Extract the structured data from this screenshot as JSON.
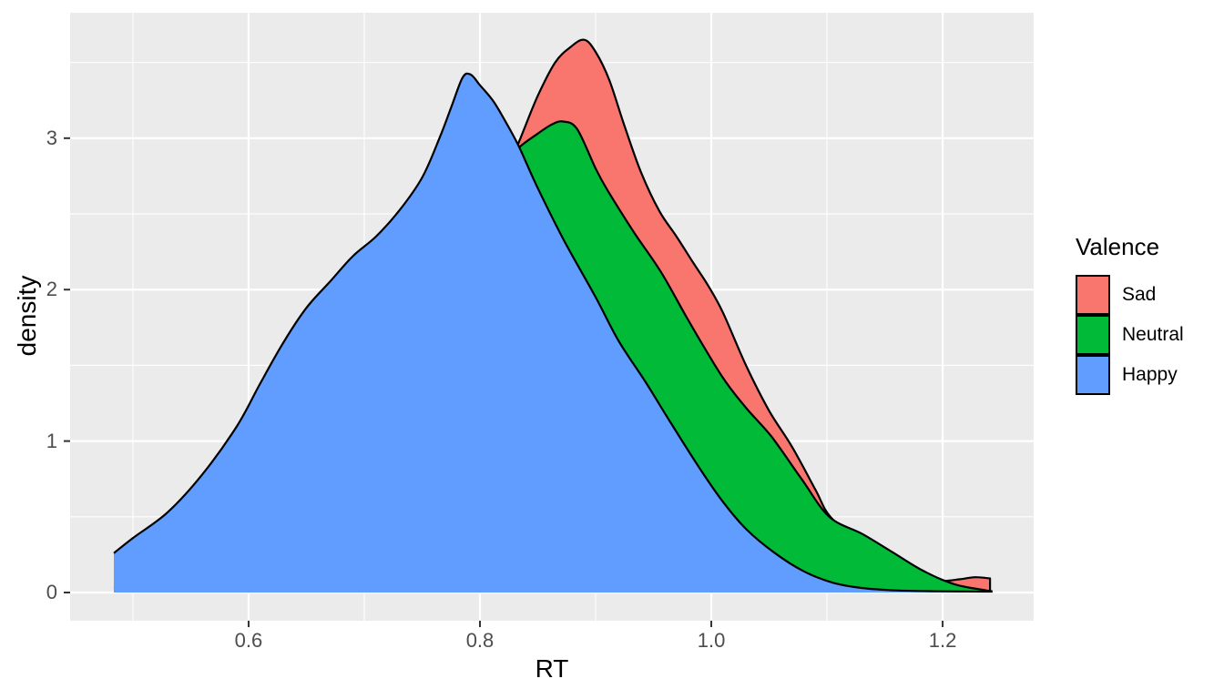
{
  "chart_data": {
    "type": "area",
    "subtype": "density",
    "xlabel": "RT",
    "ylabel": "density",
    "legend_title": "Valence",
    "legend_position": "right",
    "grid": true,
    "panel_bg": "#EBEBEB",
    "grid_color": "#FFFFFF",
    "outline_color": "#000000",
    "tick_color": "#333333",
    "tick_text_color": "#4D4D4D",
    "axes": {
      "x": {
        "domain": [
          0.4457,
          1.2787
        ],
        "major_ticks": [
          0.6,
          0.8,
          1.0,
          1.2
        ],
        "tick_labels": [
          "0.6",
          "0.8",
          "1.0",
          "1.2"
        ],
        "minor_ticks": [
          0.5,
          0.7,
          0.9,
          1.1
        ]
      },
      "y": {
        "domain": [
          -0.1863,
          3.8283
        ],
        "major_ticks": [
          0,
          1,
          2,
          3
        ],
        "tick_labels": [
          "0",
          "1",
          "2",
          "3"
        ],
        "minor_ticks": [
          0.5,
          1.5,
          2.5,
          3.5
        ]
      }
    },
    "series": [
      {
        "name": "Sad",
        "fill": "#F8766D",
        "clip_right_edge": true,
        "points": [
          [
            0.4835,
            0.02
          ],
          [
            0.52,
            0.05
          ],
          [
            0.56,
            0.1
          ],
          [
            0.6,
            0.2
          ],
          [
            0.64,
            0.38
          ],
          [
            0.68,
            0.7
          ],
          [
            0.72,
            1.15
          ],
          [
            0.75,
            1.55
          ],
          [
            0.78,
            2.05
          ],
          [
            0.8,
            2.38
          ],
          [
            0.82,
            2.72
          ],
          [
            0.835,
            3.0
          ],
          [
            0.85,
            3.28
          ],
          [
            0.865,
            3.5
          ],
          [
            0.878,
            3.6
          ],
          [
            0.89,
            3.65
          ],
          [
            0.9,
            3.57
          ],
          [
            0.912,
            3.38
          ],
          [
            0.925,
            3.08
          ],
          [
            0.939,
            2.78
          ],
          [
            0.955,
            2.52
          ],
          [
            0.97,
            2.35
          ],
          [
            0.985,
            2.17
          ],
          [
            0.997,
            2.03
          ],
          [
            1.01,
            1.85
          ],
          [
            1.03,
            1.5
          ],
          [
            1.05,
            1.2
          ],
          [
            1.07,
            0.96
          ],
          [
            1.09,
            0.68
          ],
          [
            1.103,
            0.5
          ],
          [
            1.13,
            0.33
          ],
          [
            1.16,
            0.2
          ],
          [
            1.185,
            0.105
          ],
          [
            1.2,
            0.078
          ],
          [
            1.215,
            0.088
          ],
          [
            1.228,
            0.101
          ],
          [
            1.241,
            0.093
          ]
        ]
      },
      {
        "name": "Neutral",
        "fill": "#00BA38",
        "clip_right_edge": false,
        "points": [
          [
            0.4835,
            0.03
          ],
          [
            0.52,
            0.07
          ],
          [
            0.56,
            0.15
          ],
          [
            0.6,
            0.3
          ],
          [
            0.64,
            0.55
          ],
          [
            0.68,
            0.95
          ],
          [
            0.72,
            1.45
          ],
          [
            0.75,
            1.85
          ],
          [
            0.78,
            2.3
          ],
          [
            0.8,
            2.6
          ],
          [
            0.82,
            2.82
          ],
          [
            0.834,
            2.94
          ],
          [
            0.85,
            3.03
          ],
          [
            0.862,
            3.09
          ],
          [
            0.872,
            3.11
          ],
          [
            0.884,
            3.06
          ],
          [
            0.9,
            2.8
          ],
          [
            0.91,
            2.66
          ],
          [
            0.933,
            2.38
          ],
          [
            0.957,
            2.11
          ],
          [
            0.98,
            1.8
          ],
          [
            1.009,
            1.43
          ],
          [
            1.03,
            1.22
          ],
          [
            1.052,
            1.03
          ],
          [
            1.078,
            0.75
          ],
          [
            1.102,
            0.5
          ],
          [
            1.131,
            0.385
          ],
          [
            1.157,
            0.265
          ],
          [
            1.183,
            0.144
          ],
          [
            1.21,
            0.055
          ],
          [
            1.236,
            0.016
          ],
          [
            1.243,
            0.008
          ]
        ]
      },
      {
        "name": "Happy",
        "fill": "#619CFF",
        "clip_right_edge": false,
        "points": [
          [
            0.4835,
            0.26
          ],
          [
            0.5,
            0.36
          ],
          [
            0.53,
            0.53
          ],
          [
            0.56,
            0.78
          ],
          [
            0.59,
            1.1
          ],
          [
            0.61,
            1.38
          ],
          [
            0.63,
            1.65
          ],
          [
            0.65,
            1.88
          ],
          [
            0.67,
            2.05
          ],
          [
            0.69,
            2.22
          ],
          [
            0.71,
            2.35
          ],
          [
            0.73,
            2.52
          ],
          [
            0.75,
            2.74
          ],
          [
            0.765,
            3.0
          ],
          [
            0.775,
            3.2
          ],
          [
            0.785,
            3.4
          ],
          [
            0.792,
            3.42
          ],
          [
            0.8,
            3.35
          ],
          [
            0.812,
            3.24
          ],
          [
            0.825,
            3.07
          ],
          [
            0.834,
            2.94
          ],
          [
            0.85,
            2.67
          ],
          [
            0.873,
            2.32
          ],
          [
            0.9,
            1.95
          ],
          [
            0.92,
            1.66
          ],
          [
            0.944,
            1.38
          ],
          [
            0.965,
            1.12
          ],
          [
            0.99,
            0.82
          ],
          [
            1.01,
            0.6
          ],
          [
            1.03,
            0.42
          ],
          [
            1.055,
            0.26
          ],
          [
            1.08,
            0.14
          ],
          [
            1.105,
            0.065
          ],
          [
            1.13,
            0.03
          ],
          [
            1.16,
            0.014
          ],
          [
            1.2,
            0.008
          ],
          [
            1.243,
            0.006
          ]
        ]
      }
    ]
  },
  "legend": {
    "title": "Valence",
    "items": [
      {
        "label": "Sad",
        "color": "#F8766D"
      },
      {
        "label": "Neutral",
        "color": "#00BA38"
      },
      {
        "label": "Happy",
        "color": "#619CFF"
      }
    ]
  },
  "titles": {
    "x": "RT",
    "y": "density"
  }
}
